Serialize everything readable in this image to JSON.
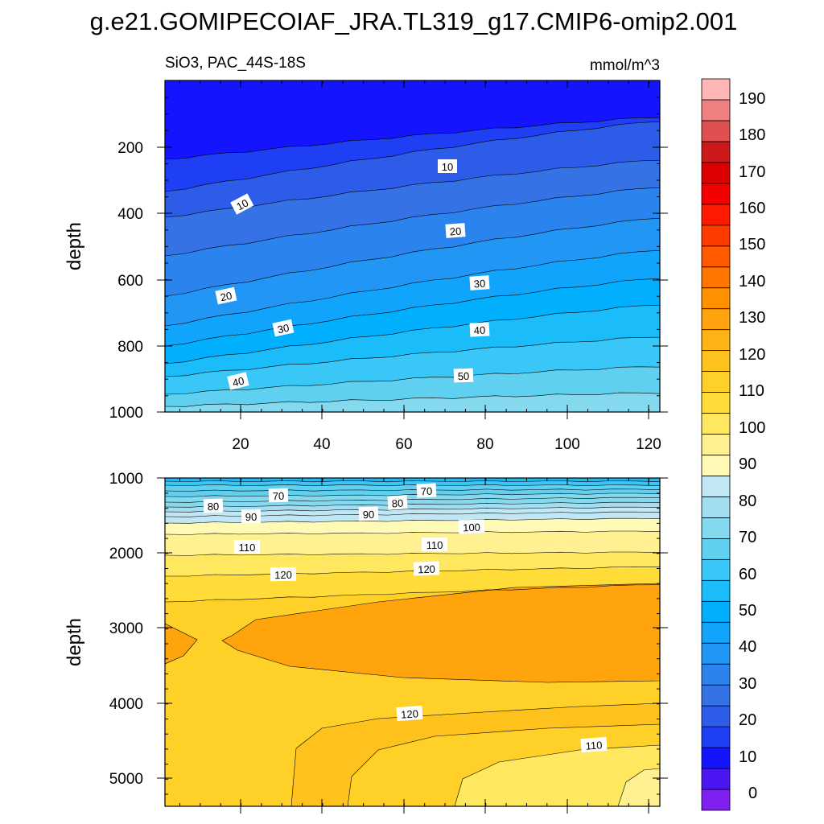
{
  "figure_title": "g.e21.GOMIPECOIAF_JRA.TL319_g17.CMIP6-omip2.001",
  "chart_data": {
    "type": "contour",
    "variable_label": "SiO3, PAC_44S-18S",
    "units": "mmol/m^3",
    "xlabel": "",
    "ylabel": "depth",
    "xlim": [
      0,
      122
    ],
    "x_ticks": [
      "20",
      "40",
      "60",
      "80",
      "100",
      "120"
    ],
    "colorbar": {
      "min": -10,
      "max": 200,
      "step": 5,
      "tick_labels": [
        "0",
        "10",
        "20",
        "30",
        "40",
        "50",
        "60",
        "70",
        "80",
        "90",
        "100",
        "110",
        "120",
        "130",
        "140",
        "150",
        "160",
        "170",
        "180",
        "190"
      ],
      "colors": [
        "#7f1ff0",
        "#4a16f2",
        "#1414ff",
        "#1f3ff5",
        "#2d5ce8",
        "#3572e6",
        "#2b84ee",
        "#2196f5",
        "#11a4fc",
        "#00b0ff",
        "#1bbcfa",
        "#39c7f7",
        "#60d0f1",
        "#85d9ee",
        "#a3ddf0",
        "#c2e7f4",
        "#fffbb6",
        "#fff191",
        "#ffe860",
        "#ffdc38",
        "#ffd028",
        "#ffc21d",
        "#ffb415",
        "#ffa40c",
        "#ff9100",
        "#ff7700",
        "#ff5a00",
        "#ff3c00",
        "#ff1a00",
        "#f50000",
        "#dc0000",
        "#cc1a1a",
        "#e05050",
        "#f08080",
        "#ffb6b6"
      ]
    },
    "panels": [
      {
        "name": "upper",
        "ylim": [
          0,
          1000
        ],
        "y_reversed": true,
        "y_ticks": [
          "200",
          "400",
          "600",
          "800",
          "1000"
        ],
        "contour_labels": [
          "10",
          "10",
          "20",
          "20",
          "30",
          "30",
          "40",
          "40",
          "50"
        ]
      },
      {
        "name": "lower",
        "ylim": [
          1000,
          5400
        ],
        "y_reversed": true,
        "y_ticks": [
          "1000",
          "2000",
          "3000",
          "4000",
          "5000"
        ],
        "contour_labels": [
          "70",
          "70",
          "80",
          "80",
          "90",
          "90",
          "100",
          "110",
          "110",
          "120",
          "120",
          "120",
          "110"
        ]
      }
    ]
  }
}
